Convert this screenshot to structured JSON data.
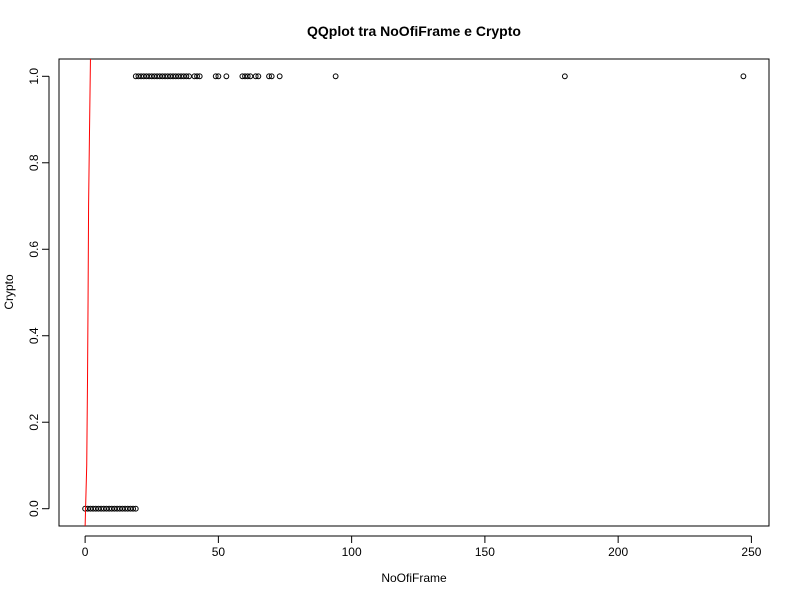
{
  "chart_data": {
    "type": "scatter",
    "title": "QQplot tra NoOfiFrame e Crypto",
    "xlabel": "NoOfiFrame",
    "ylabel": "Crypto",
    "xlim": [
      -9.8,
      256.6
    ],
    "ylim": [
      -0.04,
      1.04
    ],
    "xticks": [
      0,
      50,
      100,
      150,
      200,
      250
    ],
    "yticks": [
      0.0,
      0.2,
      0.4,
      0.6,
      0.8,
      1.0
    ],
    "xtick_labels": [
      "0",
      "50",
      "100",
      "150",
      "200",
      "250"
    ],
    "ytick_labels": [
      "0.0",
      "0.2",
      "0.4",
      "0.6",
      "0.8",
      "1.0"
    ],
    "grid": false,
    "legend": "none",
    "points_color": "#000000",
    "line_color": "#ff0000",
    "series": [
      {
        "x": [
          0,
          1,
          2,
          3,
          4,
          5,
          6,
          7,
          8,
          9,
          10,
          11,
          12,
          13,
          14,
          15,
          16,
          17,
          18,
          19,
          19,
          20,
          21,
          22,
          23,
          24,
          25,
          26,
          27,
          28,
          29,
          30,
          31,
          32,
          33,
          34,
          35,
          36,
          37,
          38,
          39,
          41,
          42,
          43,
          49,
          50,
          53,
          59,
          60,
          61,
          62,
          64,
          65,
          69,
          70,
          73,
          94,
          180,
          247
        ],
        "y": [
          0,
          0,
          0,
          0,
          0,
          0,
          0,
          0,
          0,
          0,
          0,
          0,
          0,
          0,
          0,
          0,
          0,
          0,
          0,
          0,
          1,
          1,
          1,
          1,
          1,
          1,
          1,
          1,
          1,
          1,
          1,
          1,
          1,
          1,
          1,
          1,
          1,
          1,
          1,
          1,
          1,
          1,
          1,
          1,
          1,
          1,
          1,
          1,
          1,
          1,
          1,
          1,
          1,
          1,
          1,
          1,
          1,
          1,
          1
        ]
      }
    ],
    "reference_line": {
      "x": [
        0,
        0.6,
        0.9,
        1.1,
        1.3,
        1.6,
        2.0
      ],
      "y": [
        -0.04,
        0.1,
        0.3,
        0.48,
        0.7,
        0.85,
        1.04
      ]
    }
  }
}
